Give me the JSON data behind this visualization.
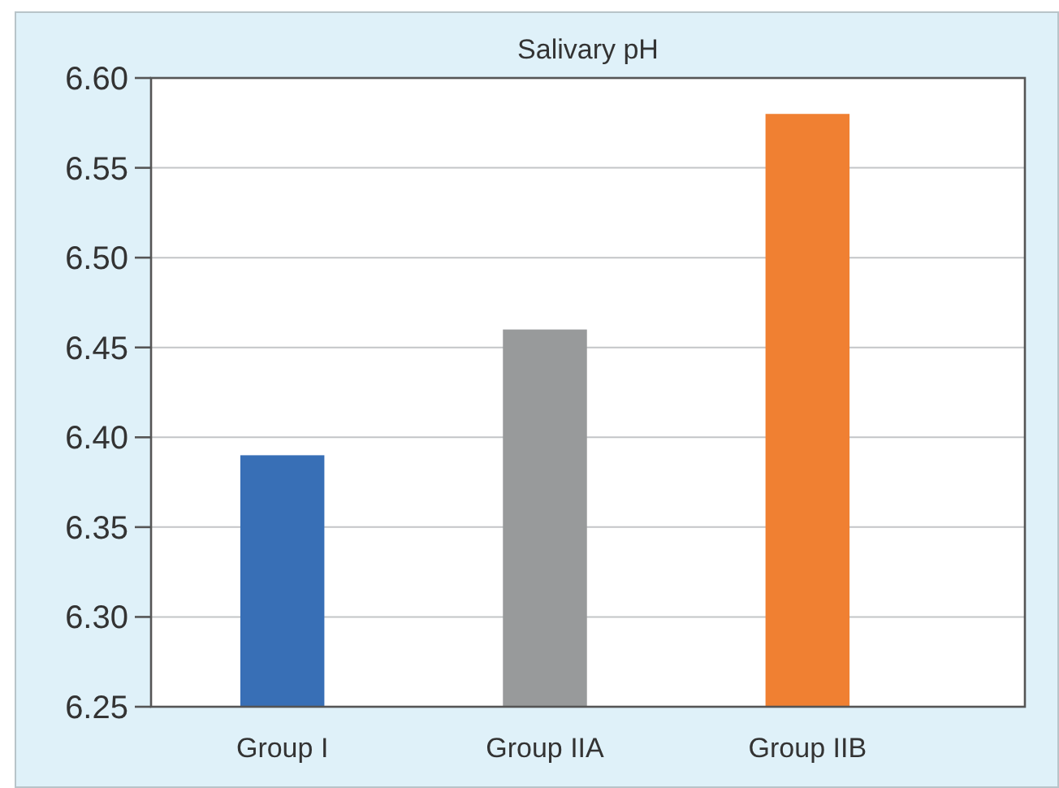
{
  "chart_data": {
    "type": "bar",
    "title": "Salivary pH",
    "categories": [
      "Group I",
      "Group IIA",
      "Group IIB"
    ],
    "values": [
      6.39,
      6.46,
      6.58
    ],
    "colors": [
      "#386fb6",
      "#989a9b",
      "#f08032"
    ],
    "ylim": [
      6.25,
      6.6
    ],
    "yticks": [
      {
        "value": 6.25,
        "label": "6.25"
      },
      {
        "value": 6.3,
        "label": "6.30"
      },
      {
        "value": 6.35,
        "label": "6.35"
      },
      {
        "value": 6.4,
        "label": "6.40"
      },
      {
        "value": 6.45,
        "label": "6.45"
      },
      {
        "value": 6.5,
        "label": "6.50"
      },
      {
        "value": 6.55,
        "label": "6.55"
      },
      {
        "value": 6.6,
        "label": "6.60"
      }
    ],
    "grid": "y"
  }
}
